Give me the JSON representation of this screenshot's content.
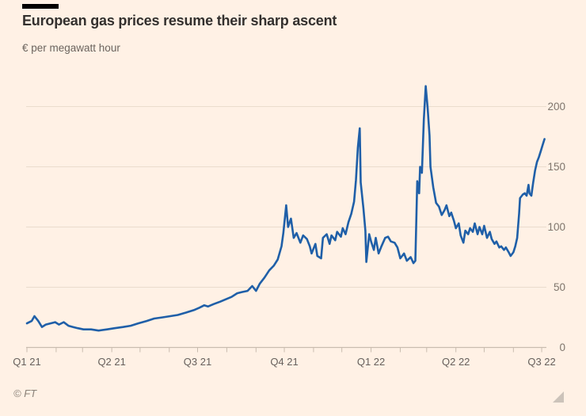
{
  "footer": {
    "credit": "© FT"
  },
  "colors": {
    "background": "#FFF1E5",
    "line": "#1F5FA8",
    "gridline": "#EADCCD",
    "axis": "#C9BCAF",
    "x_label": "#66605C",
    "y_label": "#7E756C",
    "title": "#33302E",
    "subtitle": "#6B645E",
    "credit": "#8A8178",
    "title_rule": "#000000",
    "resize_handle": "#CCC3BA"
  },
  "chart_data": {
    "type": "line",
    "title": "European gas prices resume their sharp ascent",
    "ylabel": "€ per megawatt hour",
    "xlabel": "",
    "grid": "horizontal",
    "legend": "none",
    "ylim": [
      0,
      230
    ],
    "y_ticks": [
      0,
      50,
      100,
      150,
      200
    ],
    "x_domain": [
      "2021-01-01",
      "2022-07-06"
    ],
    "x_ticks": [
      {
        "label": "Q1 21",
        "date": "2021-01-01"
      },
      {
        "label": "Q2 21",
        "date": "2021-04-01"
      },
      {
        "label": "Q3 21",
        "date": "2021-07-01"
      },
      {
        "label": "Q4 21",
        "date": "2021-10-01"
      },
      {
        "label": "Q1 22",
        "date": "2022-01-01"
      },
      {
        "label": "Q2 22",
        "date": "2022-04-01"
      },
      {
        "label": "Q3 22",
        "date": "2022-07-01"
      }
    ],
    "x_minor_tick_interval": "month",
    "series": [
      {
        "name": "gas_price",
        "color": "#1F5FA8",
        "points": [
          [
            "2021-01-01",
            20
          ],
          [
            "2021-01-06",
            22
          ],
          [
            "2021-01-09",
            26
          ],
          [
            "2021-01-13",
            22
          ],
          [
            "2021-01-17",
            17
          ],
          [
            "2021-01-21",
            19
          ],
          [
            "2021-01-26",
            20
          ],
          [
            "2021-01-31",
            21
          ],
          [
            "2021-02-04",
            19
          ],
          [
            "2021-02-09",
            21
          ],
          [
            "2021-02-14",
            18
          ],
          [
            "2021-02-19",
            17
          ],
          [
            "2021-02-24",
            16
          ],
          [
            "2021-03-02",
            15
          ],
          [
            "2021-03-10",
            15
          ],
          [
            "2021-03-18",
            14
          ],
          [
            "2021-03-27",
            15
          ],
          [
            "2021-04-04",
            16
          ],
          [
            "2021-04-13",
            17
          ],
          [
            "2021-04-21",
            18
          ],
          [
            "2021-04-29",
            20
          ],
          [
            "2021-05-08",
            22
          ],
          [
            "2021-05-16",
            24
          ],
          [
            "2021-05-25",
            25
          ],
          [
            "2021-06-02",
            26
          ],
          [
            "2021-06-10",
            27
          ],
          [
            "2021-06-19",
            29
          ],
          [
            "2021-06-27",
            31
          ],
          [
            "2021-07-03",
            33
          ],
          [
            "2021-07-08",
            35
          ],
          [
            "2021-07-12",
            34
          ],
          [
            "2021-07-18",
            36
          ],
          [
            "2021-07-25",
            38
          ],
          [
            "2021-07-31",
            40
          ],
          [
            "2021-08-06",
            42
          ],
          [
            "2021-08-12",
            45
          ],
          [
            "2021-08-17",
            46
          ],
          [
            "2021-08-23",
            47
          ],
          [
            "2021-08-28",
            51
          ],
          [
            "2021-09-01",
            47
          ],
          [
            "2021-09-05",
            53
          ],
          [
            "2021-09-10",
            58
          ],
          [
            "2021-09-15",
            64
          ],
          [
            "2021-09-20",
            68
          ],
          [
            "2021-09-24",
            73
          ],
          [
            "2021-09-28",
            84
          ],
          [
            "2021-09-30",
            95
          ],
          [
            "2021-10-03",
            118
          ],
          [
            "2021-10-05",
            100
          ],
          [
            "2021-10-08",
            107
          ],
          [
            "2021-10-11",
            91
          ],
          [
            "2021-10-14",
            95
          ],
          [
            "2021-10-18",
            87
          ],
          [
            "2021-10-21",
            93
          ],
          [
            "2021-10-25",
            90
          ],
          [
            "2021-10-28",
            84
          ],
          [
            "2021-10-30",
            78
          ],
          [
            "2021-11-03",
            86
          ],
          [
            "2021-11-05",
            76
          ],
          [
            "2021-11-09",
            74
          ],
          [
            "2021-11-11",
            91
          ],
          [
            "2021-11-15",
            94
          ],
          [
            "2021-11-18",
            86
          ],
          [
            "2021-11-20",
            93
          ],
          [
            "2021-11-24",
            89
          ],
          [
            "2021-11-26",
            96
          ],
          [
            "2021-11-30",
            92
          ],
          [
            "2021-12-02",
            99
          ],
          [
            "2021-12-05",
            94
          ],
          [
            "2021-12-08",
            104
          ],
          [
            "2021-12-11",
            111
          ],
          [
            "2021-12-14",
            121
          ],
          [
            "2021-12-16",
            139
          ],
          [
            "2021-12-18",
            166
          ],
          [
            "2021-12-20",
            182
          ],
          [
            "2021-12-21",
            137
          ],
          [
            "2021-12-24",
            115
          ],
          [
            "2021-12-26",
            97
          ],
          [
            "2021-12-27",
            71
          ],
          [
            "2021-12-30",
            94
          ],
          [
            "2022-01-01",
            88
          ],
          [
            "2022-01-04",
            81
          ],
          [
            "2022-01-06",
            91
          ],
          [
            "2022-01-09",
            78
          ],
          [
            "2022-01-12",
            84
          ],
          [
            "2022-01-16",
            91
          ],
          [
            "2022-01-19",
            92
          ],
          [
            "2022-01-22",
            88
          ],
          [
            "2022-01-26",
            87
          ],
          [
            "2022-01-29",
            83
          ],
          [
            "2022-02-01",
            74
          ],
          [
            "2022-02-05",
            78
          ],
          [
            "2022-02-08",
            72
          ],
          [
            "2022-02-12",
            75
          ],
          [
            "2022-02-15",
            70
          ],
          [
            "2022-02-17",
            72
          ],
          [
            "2022-02-19",
            138
          ],
          [
            "2022-02-21",
            128
          ],
          [
            "2022-02-22",
            150
          ],
          [
            "2022-02-24",
            145
          ],
          [
            "2022-02-26",
            189
          ],
          [
            "2022-02-28",
            217
          ],
          [
            "2022-03-02",
            199
          ],
          [
            "2022-03-04",
            176
          ],
          [
            "2022-03-05",
            150
          ],
          [
            "2022-03-08",
            133
          ],
          [
            "2022-03-11",
            120
          ],
          [
            "2022-03-14",
            117
          ],
          [
            "2022-03-17",
            110
          ],
          [
            "2022-03-20",
            114
          ],
          [
            "2022-03-22",
            118
          ],
          [
            "2022-03-25",
            109
          ],
          [
            "2022-03-27",
            112
          ],
          [
            "2022-03-30",
            105
          ],
          [
            "2022-04-01",
            99
          ],
          [
            "2022-04-04",
            103
          ],
          [
            "2022-04-06",
            93
          ],
          [
            "2022-04-09",
            87
          ],
          [
            "2022-04-11",
            97
          ],
          [
            "2022-04-14",
            94
          ],
          [
            "2022-04-16",
            99
          ],
          [
            "2022-04-19",
            96
          ],
          [
            "2022-04-21",
            103
          ],
          [
            "2022-04-24",
            94
          ],
          [
            "2022-04-26",
            100
          ],
          [
            "2022-04-29",
            94
          ],
          [
            "2022-05-01",
            101
          ],
          [
            "2022-05-04",
            91
          ],
          [
            "2022-05-07",
            96
          ],
          [
            "2022-05-09",
            90
          ],
          [
            "2022-05-12",
            86
          ],
          [
            "2022-05-14",
            88
          ],
          [
            "2022-05-17",
            83
          ],
          [
            "2022-05-19",
            84
          ],
          [
            "2022-05-22",
            81
          ],
          [
            "2022-05-24",
            83
          ],
          [
            "2022-05-27",
            79
          ],
          [
            "2022-05-29",
            76
          ],
          [
            "2022-06-01",
            79
          ],
          [
            "2022-06-03",
            84
          ],
          [
            "2022-06-05",
            91
          ],
          [
            "2022-06-07",
            111
          ],
          [
            "2022-06-08",
            124
          ],
          [
            "2022-06-11",
            127
          ],
          [
            "2022-06-13",
            128
          ],
          [
            "2022-06-15",
            126
          ],
          [
            "2022-06-17",
            135
          ],
          [
            "2022-06-18",
            128
          ],
          [
            "2022-06-20",
            126
          ],
          [
            "2022-06-22",
            137
          ],
          [
            "2022-06-24",
            147
          ],
          [
            "2022-06-26",
            154
          ],
          [
            "2022-06-28",
            158
          ],
          [
            "2022-06-30",
            163
          ],
          [
            "2022-07-02",
            168
          ],
          [
            "2022-07-04",
            173
          ]
        ]
      }
    ]
  }
}
